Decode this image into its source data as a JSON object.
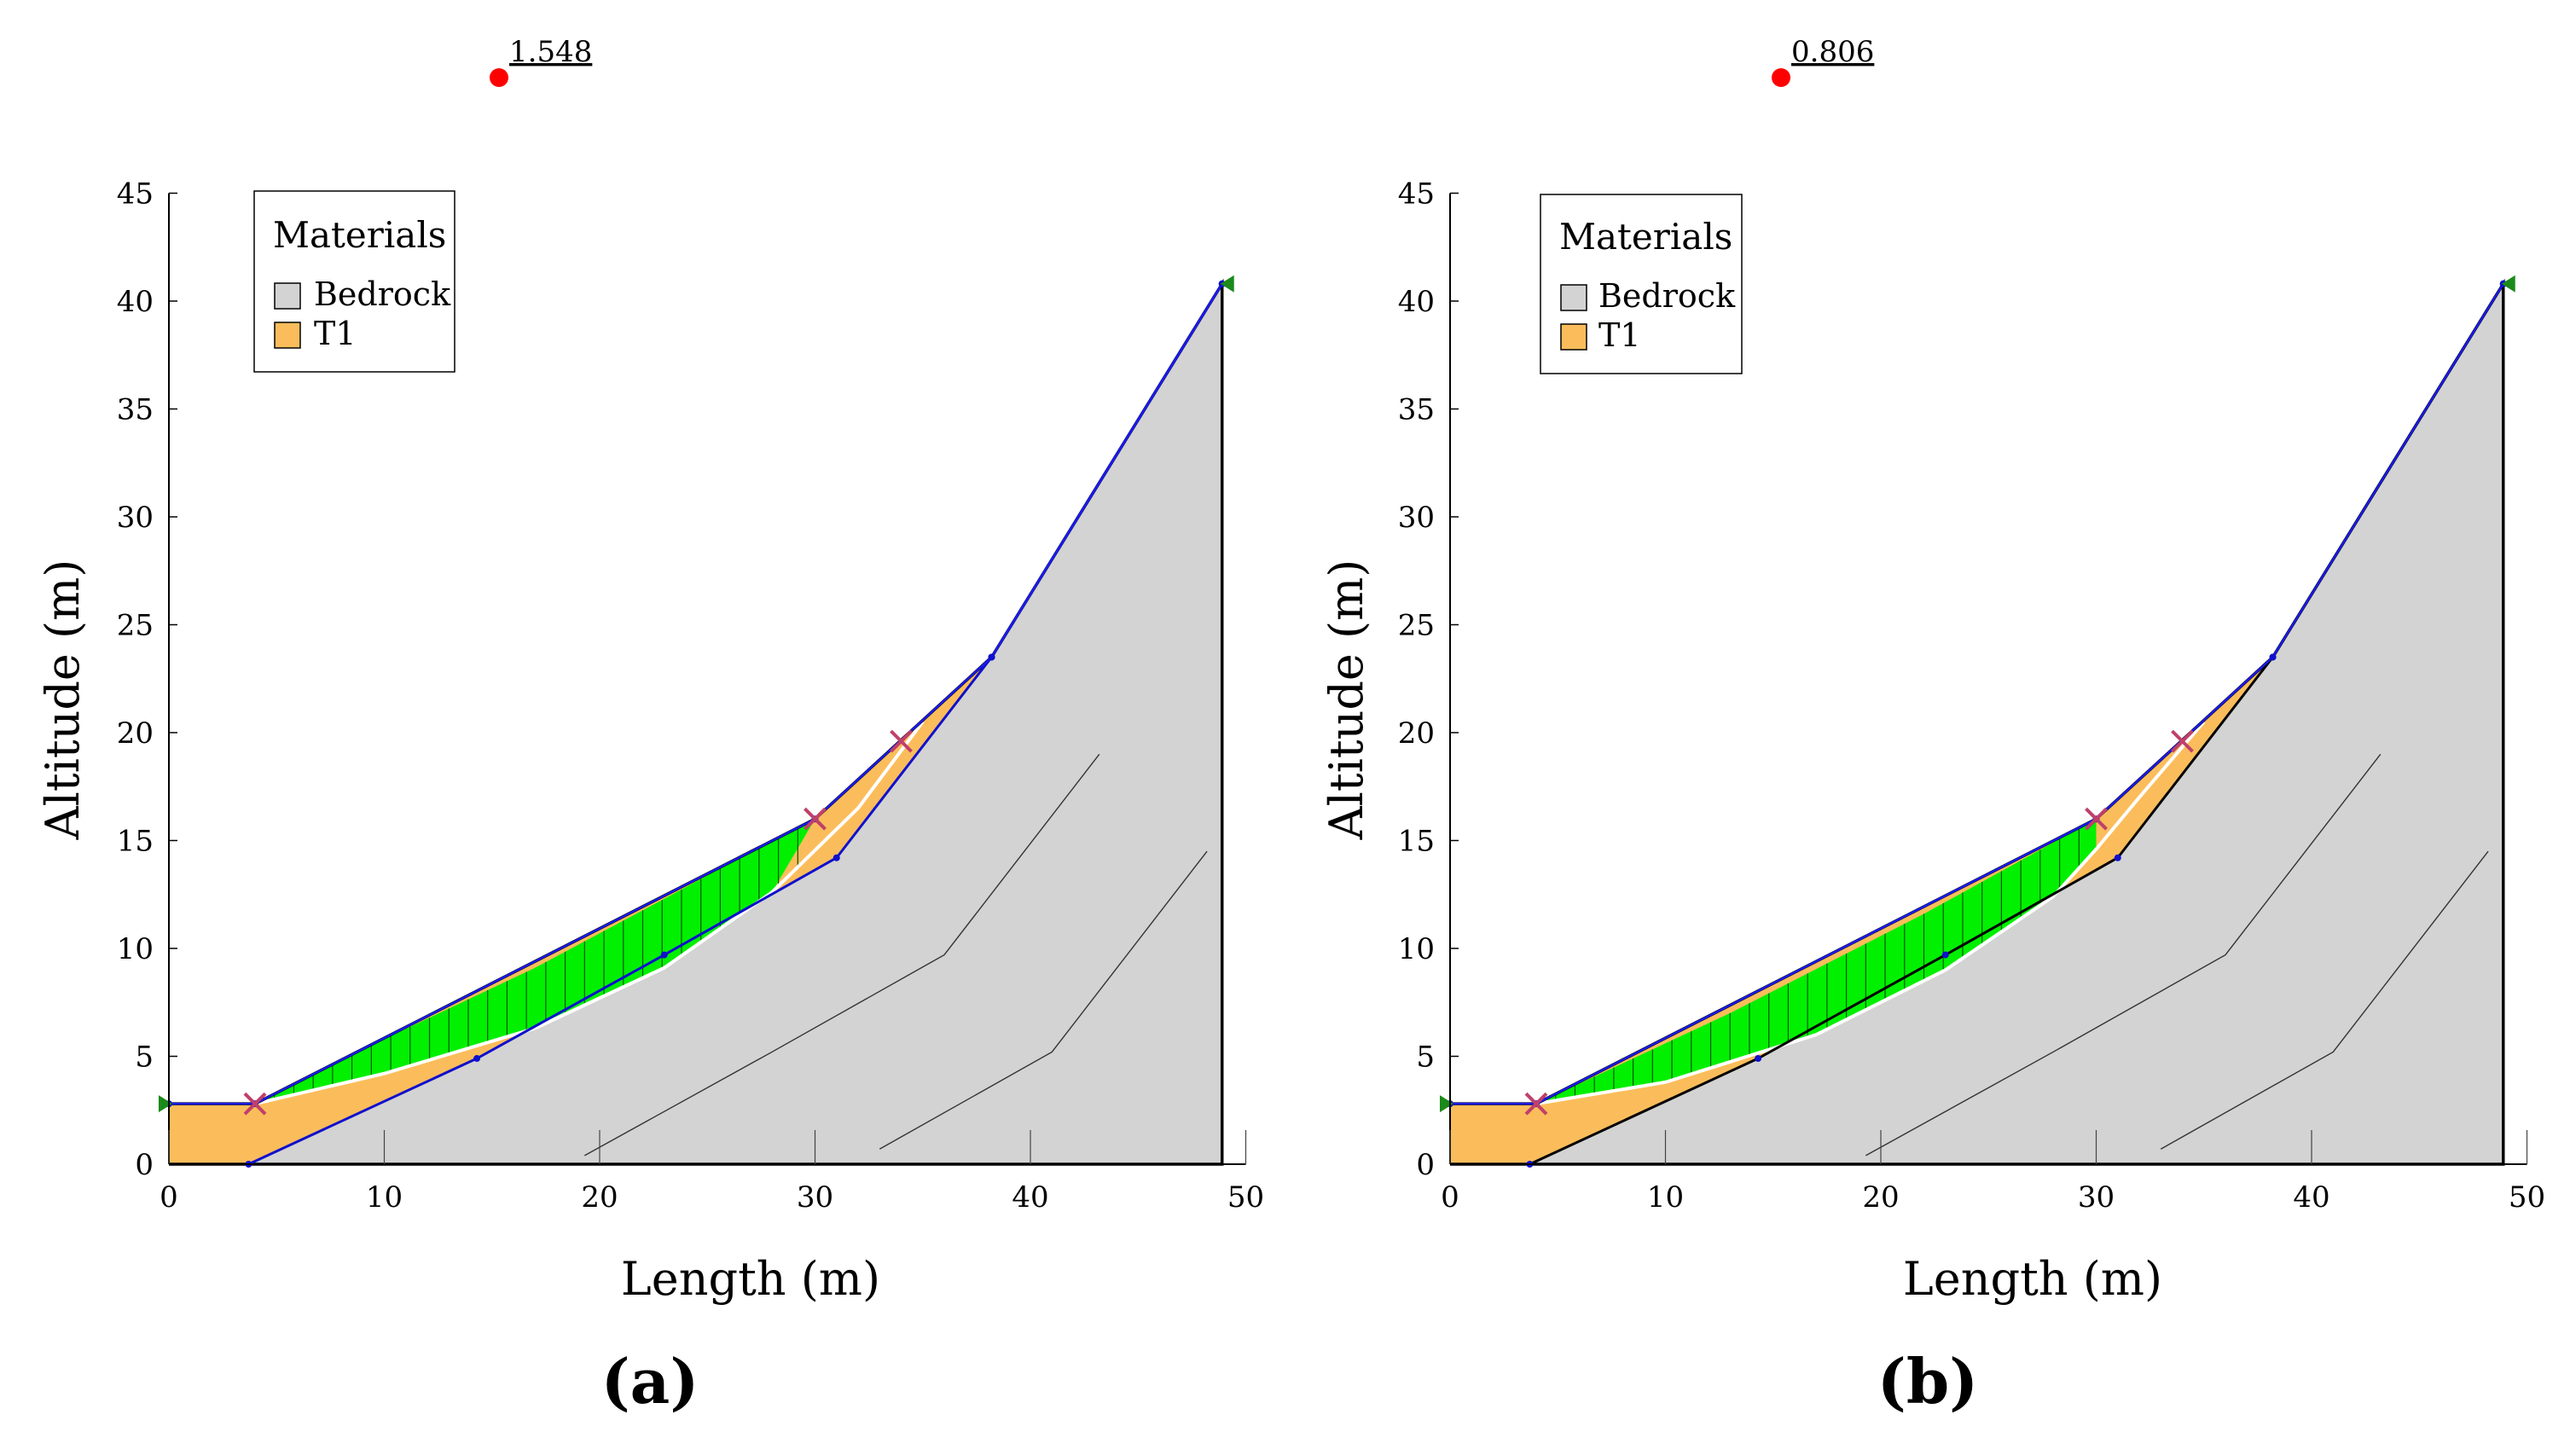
{
  "chart_data": [
    {
      "type": "area",
      "panel_label": "(a)",
      "factor_of_safety": "1.548",
      "title": "",
      "xlabel": "Length  (m)",
      "ylabel": "Altitude (m)",
      "xlim": [
        0,
        50
      ],
      "ylim": [
        0,
        45
      ],
      "x_ticks": [
        "0",
        "10",
        "20",
        "30",
        "40",
        "50"
      ],
      "y_ticks": [
        "0",
        "5",
        "10",
        "15",
        "20",
        "25",
        "30",
        "35",
        "40",
        "45"
      ],
      "legend": {
        "title": "Materials",
        "placement": "top-left",
        "entries": [
          {
            "name": "Bedrock",
            "color": "#d3d3d3"
          },
          {
            "name": "T1",
            "color": "#fbbd5b"
          }
        ]
      },
      "surface": [
        [
          0,
          2.8
        ],
        [
          4,
          2.8
        ],
        [
          30,
          16
        ],
        [
          38.2,
          23.5
        ],
        [
          48.9,
          40.8
        ],
        [
          48.9,
          0
        ],
        [
          0,
          0
        ]
      ],
      "bedrock_top": [
        [
          3.7,
          0
        ],
        [
          14.3,
          4.9
        ],
        [
          23,
          9.7
        ],
        [
          31,
          14.2
        ],
        [
          38.2,
          23.5
        ],
        [
          48.9,
          40.8
        ],
        [
          48.9,
          0
        ]
      ],
      "slip_surface": [
        [
          4,
          2.8
        ],
        [
          10,
          4.2
        ],
        [
          17,
          6.3
        ],
        [
          23,
          9.1
        ],
        [
          28,
          12.6
        ],
        [
          32,
          16.5
        ],
        [
          35,
          20.5
        ]
      ],
      "green_top": [
        [
          4,
          2.8
        ],
        [
          10,
          5.8
        ],
        [
          17,
          9.1
        ],
        [
          23,
          12.3
        ],
        [
          28,
          15.0
        ],
        [
          30,
          16.0
        ]
      ]
    },
    {
      "type": "area",
      "panel_label": "(b)",
      "factor_of_safety": "0.806",
      "title": "",
      "xlabel": "Length  (m)",
      "ylabel": "Altitude (m)",
      "xlim": [
        0,
        50
      ],
      "ylim": [
        0,
        45
      ],
      "x_ticks": [
        "0",
        "10",
        "20",
        "30",
        "40",
        "50"
      ],
      "y_ticks": [
        "0",
        "5",
        "10",
        "15",
        "20",
        "25",
        "30",
        "35",
        "40",
        "45"
      ],
      "legend": {
        "title": "Materials",
        "placement": "top-left",
        "entries": [
          {
            "name": "Bedrock",
            "color": "#d3d3d3"
          },
          {
            "name": "T1",
            "color": "#fbbd5b"
          }
        ]
      },
      "surface": [
        [
          0,
          2.8
        ],
        [
          4,
          2.8
        ],
        [
          30,
          16
        ],
        [
          38.2,
          23.5
        ],
        [
          48.9,
          40.8
        ],
        [
          48.9,
          0
        ],
        [
          0,
          0
        ]
      ],
      "bedrock_top": [
        [
          3.7,
          0
        ],
        [
          14.3,
          4.9
        ],
        [
          23,
          9.7
        ],
        [
          31,
          14.2
        ],
        [
          38.2,
          23.5
        ],
        [
          48.9,
          40.8
        ],
        [
          48.9,
          0
        ]
      ],
      "slip_surface": [
        [
          4,
          2.8
        ],
        [
          10,
          3.8
        ],
        [
          17,
          6.0
        ],
        [
          23,
          9.0
        ],
        [
          28,
          12.4
        ],
        [
          30,
          14.6
        ],
        [
          32,
          17.0
        ],
        [
          35,
          20.5
        ]
      ],
      "green_top": [
        [
          4,
          2.8
        ],
        [
          13,
          7.0
        ],
        [
          22,
          11.6
        ],
        [
          30,
          16.0
        ]
      ]
    }
  ]
}
